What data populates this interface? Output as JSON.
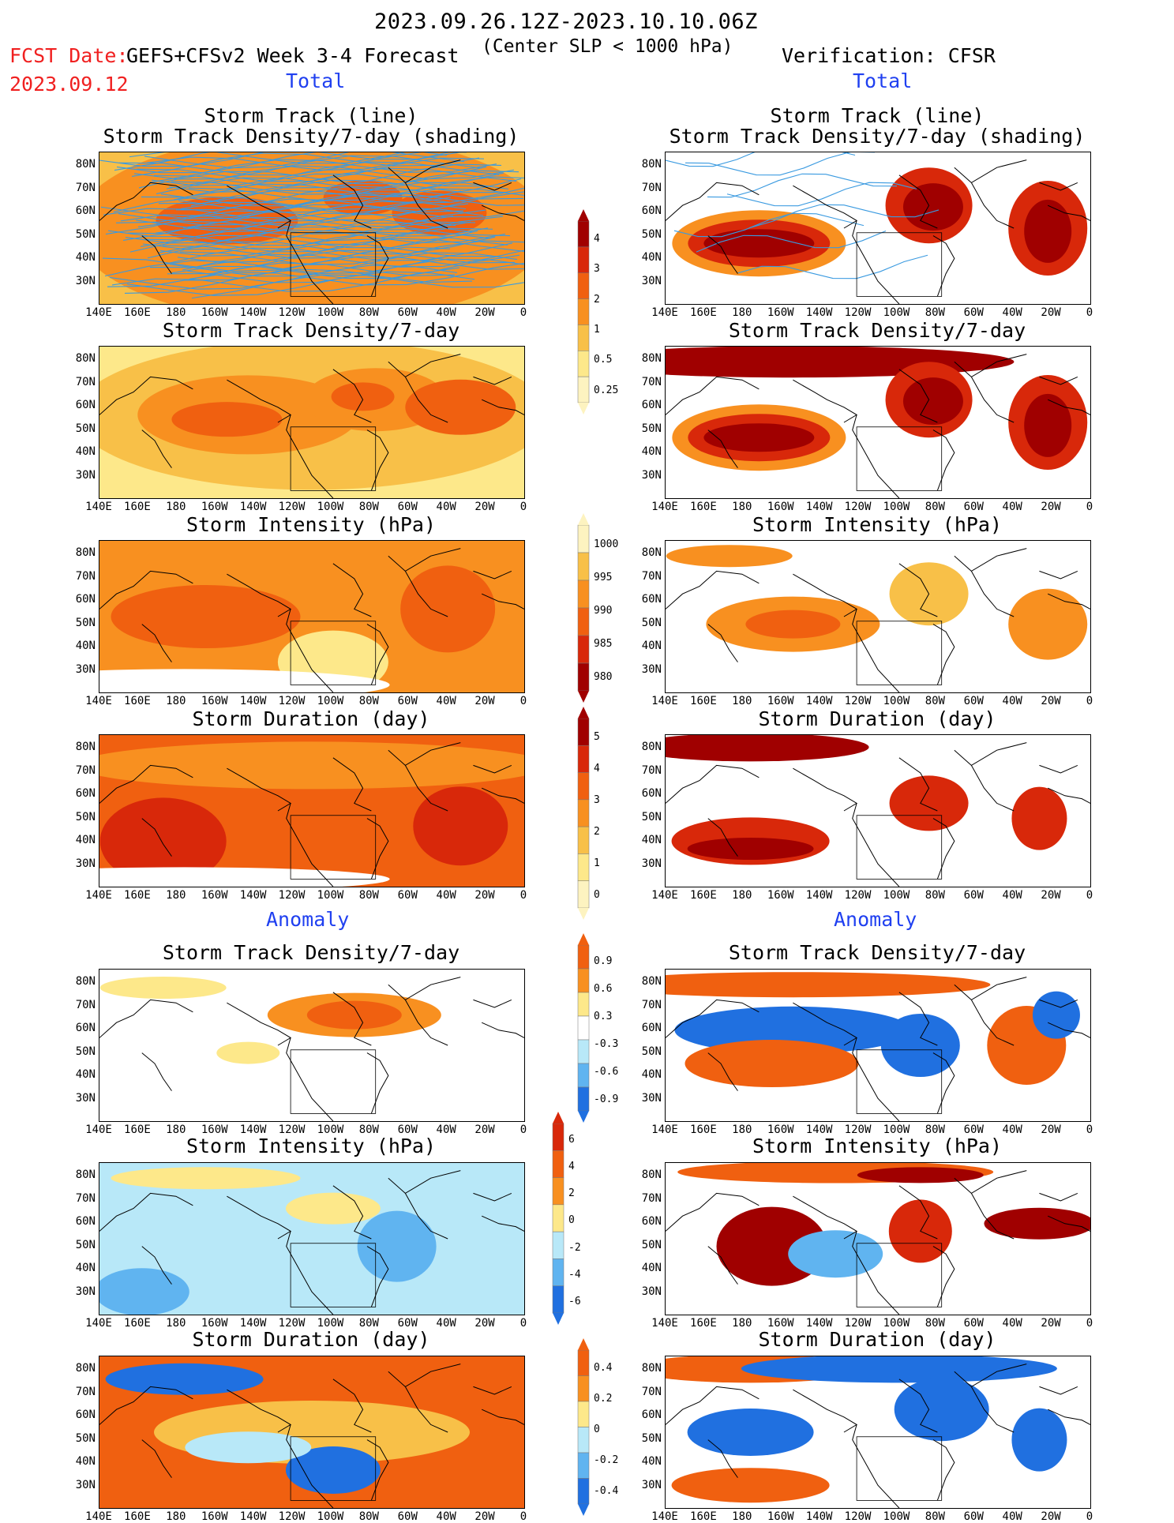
{
  "header": {
    "period": "2023.09.26.12Z-2023.10.10.06Z",
    "fcst_date_label": "FCST Date:",
    "model": "GEFS+CFSv2 Week 3-4 Forecast",
    "center_slp": "(Center SLP < 1000 hPa)",
    "verification": "Verification: CFSR",
    "fcst_date": "2023.09.12"
  },
  "sections": {
    "total_left": "Total",
    "total_right": "Total",
    "anomaly_left": "Anomaly",
    "anomaly_right": "Anomaly"
  },
  "panel_titles": {
    "track_line": "Storm Track (line)",
    "track_shading": "Storm Track Density/7-day (shading)",
    "track_density": "Storm Track Density/7-day",
    "intensity": "Storm Intensity (hPa)",
    "duration": "Storm Duration (day)"
  },
  "axis": {
    "lat_labels": [
      "80N",
      "70N",
      "60N",
      "50N",
      "40N",
      "30N"
    ],
    "lon_labels": [
      "140E",
      "160E",
      "180",
      "160W",
      "140W",
      "120W",
      "100W",
      "80W",
      "60W",
      "40W",
      "20W",
      "0"
    ]
  },
  "colorbars": {
    "density_total": [
      "4",
      "3",
      "2",
      "1",
      "0.5",
      "0.25"
    ],
    "intensity_total": [
      "1000",
      "995",
      "990",
      "985",
      "980"
    ],
    "duration_total": [
      "5",
      "4",
      "3",
      "2",
      "1",
      "0"
    ],
    "density_anom": [
      "0.9",
      "0.6",
      "0.3",
      "-0.3",
      "-0.6",
      "-0.9"
    ],
    "intensity_anom": [
      "6",
      "4",
      "2",
      "0",
      "-2",
      "-4",
      "-6"
    ],
    "duration_anom": [
      "0.4",
      "0.2",
      "0",
      "-0.2",
      "-0.4"
    ]
  },
  "colors": {
    "dark_red": "#a00000",
    "red": "#d8280a",
    "orange_red": "#f06010",
    "orange": "#f89020",
    "light_orange": "#f8c048",
    "yellow": "#fde88a",
    "pale_yellow": "#fdf3c0",
    "light_blue": "#b8e8f8",
    "mid_blue": "#60b4f0",
    "blue": "#2070e0",
    "track_line": "#3a9ae0"
  }
}
